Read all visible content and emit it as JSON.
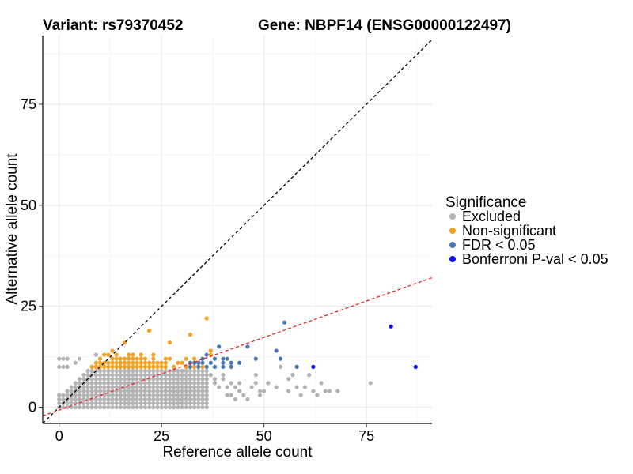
{
  "chart_data": {
    "type": "scatter",
    "title_left": "Variant: rs79370452",
    "title_right": "Gene: NBPF14 (ENSG00000122497)",
    "xlabel": "Reference allele count",
    "ylabel": "Alternative allele count",
    "xlim": [
      -4,
      91
    ],
    "ylim": [
      -4,
      92
    ],
    "xticks": [
      0,
      25,
      50,
      75
    ],
    "yticks": [
      0,
      25,
      50,
      75
    ],
    "grid": true,
    "legend": {
      "title": "Significance",
      "position": "right",
      "items": [
        {
          "label": "Excluded",
          "color": "#b3b3b3"
        },
        {
          "label": "Non-significant",
          "color": "#f5a01e"
        },
        {
          "label": "FDR < 0.05",
          "color": "#4a79b5"
        },
        {
          "label": "Bonferroni P-val < 0.05",
          "color": "#1010ee"
        }
      ]
    },
    "reference_lines": [
      {
        "name": "identity",
        "slope": 1,
        "intercept": 0,
        "color": "#000000",
        "style": "dashed"
      },
      {
        "name": "fit",
        "slope": 0.36,
        "intercept": -0.7,
        "color": "#e8202a",
        "style": "dashed"
      }
    ],
    "excluded_region": {
      "x_range": [
        0,
        36
      ],
      "y_range": [
        0,
        9
      ],
      "description": "dense grid of excluded points"
    },
    "series": [
      {
        "name": "Excluded",
        "color": "#b3b3b3",
        "points": [
          [
            0,
            10
          ],
          [
            1,
            10
          ],
          [
            2,
            10
          ],
          [
            0,
            12
          ],
          [
            1,
            12
          ],
          [
            2,
            12
          ],
          [
            4,
            11
          ],
          [
            5,
            12
          ],
          [
            8,
            10
          ],
          [
            9,
            13
          ],
          [
            10,
            12
          ],
          [
            11,
            11
          ],
          [
            13,
            12
          ],
          [
            37,
            8
          ],
          [
            38,
            7
          ],
          [
            38,
            6
          ],
          [
            39,
            5
          ],
          [
            40,
            7
          ],
          [
            40,
            8
          ],
          [
            41,
            5
          ],
          [
            41,
            3
          ],
          [
            42,
            6
          ],
          [
            43,
            5
          ],
          [
            42,
            3
          ],
          [
            43,
            2
          ],
          [
            44,
            4
          ],
          [
            44,
            6
          ],
          [
            45,
            3
          ],
          [
            46,
            2
          ],
          [
            47,
            5
          ],
          [
            48,
            8
          ],
          [
            48,
            6
          ],
          [
            49,
            4
          ],
          [
            49,
            3
          ],
          [
            50,
            4
          ],
          [
            51,
            6
          ],
          [
            53,
            5
          ],
          [
            54,
            10
          ],
          [
            56,
            7
          ],
          [
            56,
            4
          ],
          [
            57,
            8
          ],
          [
            58,
            5
          ],
          [
            59,
            3
          ],
          [
            60,
            5
          ],
          [
            61,
            8
          ],
          [
            62,
            4
          ],
          [
            63,
            3
          ],
          [
            64,
            6
          ],
          [
            65,
            4
          ],
          [
            66,
            4
          ],
          [
            68,
            4
          ],
          [
            76,
            6
          ]
        ]
      },
      {
        "name": "Non-significant",
        "color": "#f5a01e",
        "points": [
          [
            8,
            10
          ],
          [
            9,
            10
          ],
          [
            9,
            11
          ],
          [
            10,
            10
          ],
          [
            10,
            11
          ],
          [
            10,
            12
          ],
          [
            11,
            10
          ],
          [
            11,
            11
          ],
          [
            11,
            13
          ],
          [
            12,
            10
          ],
          [
            12,
            11
          ],
          [
            12,
            13
          ],
          [
            13,
            10
          ],
          [
            13,
            11
          ],
          [
            13,
            12
          ],
          [
            13,
            14
          ],
          [
            14,
            10
          ],
          [
            14,
            11
          ],
          [
            14,
            12
          ],
          [
            14,
            13
          ],
          [
            15,
            10
          ],
          [
            15,
            11
          ],
          [
            15,
            12
          ],
          [
            16,
            10
          ],
          [
            16,
            11
          ],
          [
            16,
            12
          ],
          [
            16,
            16
          ],
          [
            17,
            10
          ],
          [
            17,
            11
          ],
          [
            17,
            12
          ],
          [
            17,
            13
          ],
          [
            18,
            10
          ],
          [
            18,
            11
          ],
          [
            18,
            12
          ],
          [
            18,
            13
          ],
          [
            19,
            10
          ],
          [
            19,
            11
          ],
          [
            19,
            12
          ],
          [
            20,
            10
          ],
          [
            20,
            11
          ],
          [
            20,
            12
          ],
          [
            20,
            13
          ],
          [
            21,
            10
          ],
          [
            21,
            11
          ],
          [
            21,
            12
          ],
          [
            22,
            10
          ],
          [
            22,
            11
          ],
          [
            22,
            19
          ],
          [
            23,
            10
          ],
          [
            23,
            11
          ],
          [
            23,
            12
          ],
          [
            23,
            13
          ],
          [
            24,
            10
          ],
          [
            24,
            11
          ],
          [
            25,
            10
          ],
          [
            25,
            11
          ],
          [
            26,
            10
          ],
          [
            26,
            11
          ],
          [
            26,
            12
          ],
          [
            27,
            12
          ],
          [
            27,
            16
          ],
          [
            28,
            10
          ],
          [
            29,
            11
          ],
          [
            30,
            11
          ],
          [
            31,
            10
          ],
          [
            31,
            12
          ],
          [
            32,
            11
          ],
          [
            32,
            18
          ],
          [
            33,
            10
          ],
          [
            33,
            12
          ],
          [
            34,
            11
          ],
          [
            35,
            10
          ],
          [
            35,
            12
          ],
          [
            36,
            22
          ],
          [
            37,
            13
          ],
          [
            37,
            14
          ]
        ]
      },
      {
        "name": "FDR < 0.05",
        "color": "#4a79b5",
        "points": [
          [
            32,
            10
          ],
          [
            32,
            11
          ],
          [
            33,
            11
          ],
          [
            34,
            10
          ],
          [
            34,
            11
          ],
          [
            35,
            11
          ],
          [
            35,
            12
          ],
          [
            36,
            13
          ],
          [
            36,
            10
          ],
          [
            37,
            11
          ],
          [
            38,
            12
          ],
          [
            38,
            10
          ],
          [
            39,
            15
          ],
          [
            40,
            12
          ],
          [
            40,
            11
          ],
          [
            40,
            10
          ],
          [
            41,
            12
          ],
          [
            42,
            11
          ],
          [
            42,
            10
          ],
          [
            44,
            11
          ],
          [
            46,
            15
          ],
          [
            48,
            12
          ],
          [
            53,
            14
          ],
          [
            54,
            12
          ],
          [
            55,
            21
          ],
          [
            58,
            10
          ]
        ]
      },
      {
        "name": "Bonferroni P-val < 0.05",
        "color": "#1010ee",
        "points": [
          [
            62,
            10
          ],
          [
            81,
            20
          ],
          [
            87,
            10
          ]
        ]
      }
    ]
  }
}
